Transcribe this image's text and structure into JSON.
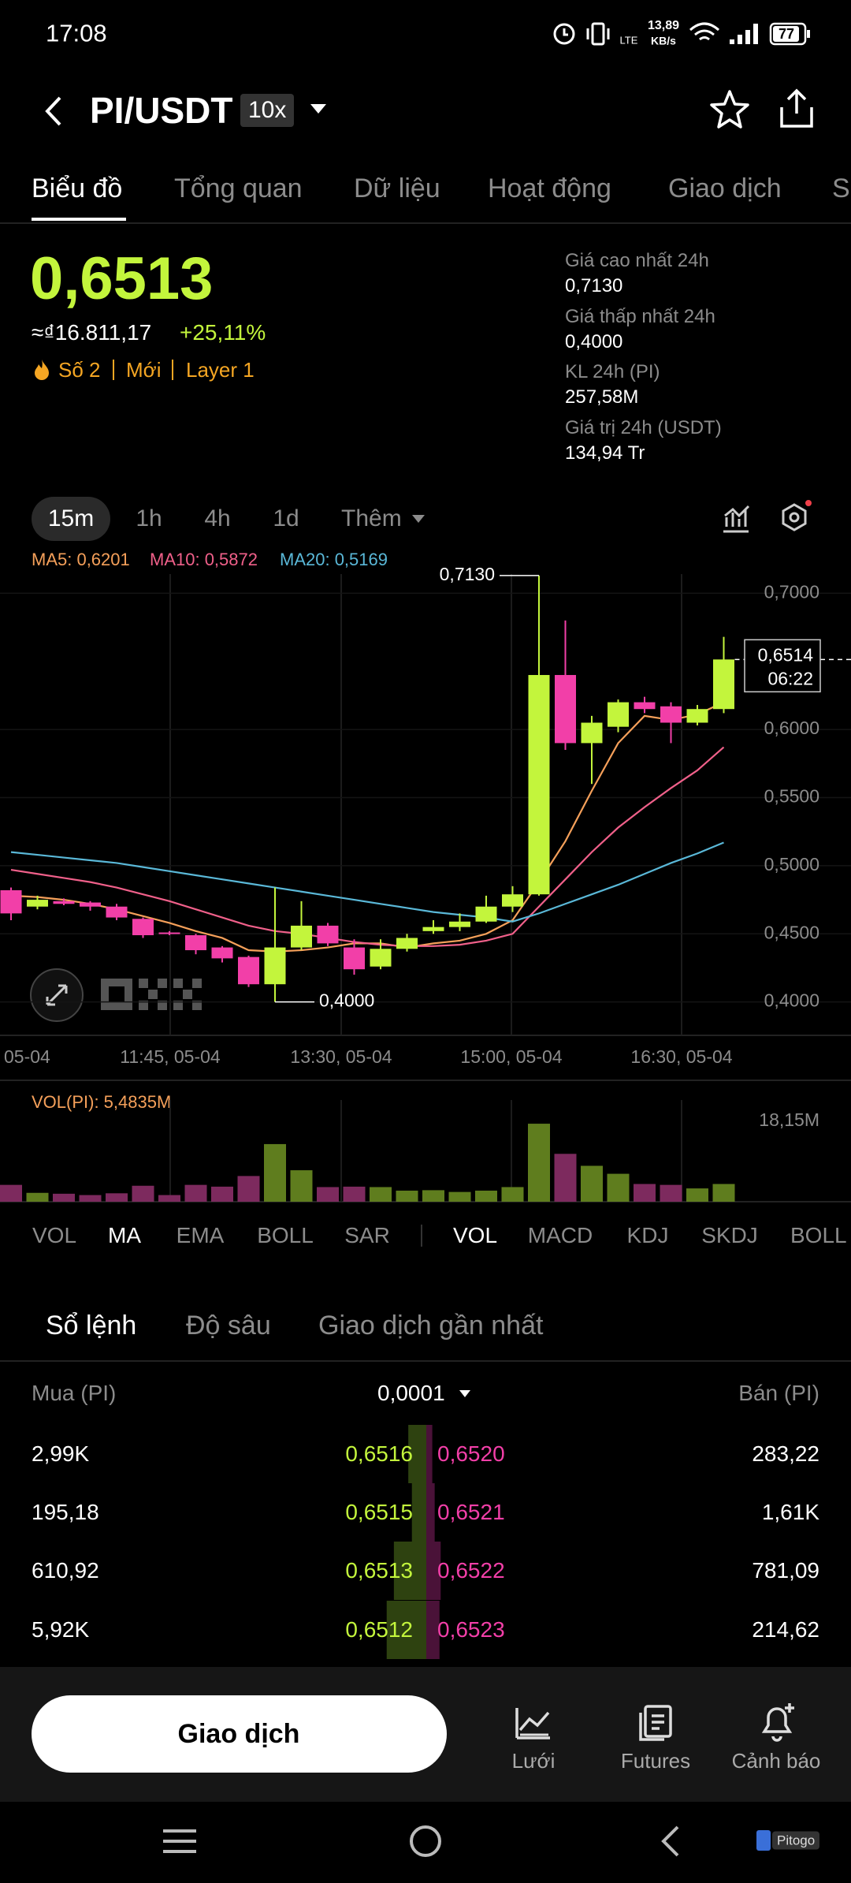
{
  "status_bar": {
    "time": "17:08",
    "lte": "LTE",
    "speed": "13,89",
    "speed_unit": "KB/s",
    "battery": "77"
  },
  "header": {
    "pair": "PI/USDT",
    "leverage": "10x"
  },
  "tabs": [
    "Biểu đồ",
    "Tổng quan",
    "Dữ liệu",
    "Hoạt động",
    "Giao dịch",
    "S"
  ],
  "ticker": {
    "price": "0,6513",
    "fiat": "≈₫16.811,17",
    "change": "+25,11%",
    "tags": [
      "Số 2",
      "Mới",
      "Layer 1"
    ]
  },
  "stats": [
    {
      "label": "Giá cao nhất 24h",
      "value": "0,7130"
    },
    {
      "label": "Giá thấp nhất 24h",
      "value": "0,4000"
    },
    {
      "label": "KL 24h (PI)",
      "value": "257,58M"
    },
    {
      "label": "Giá trị 24h (USDT)",
      "value": "134,94 Tr"
    }
  ],
  "timeframes": [
    "15m",
    "1h",
    "4h",
    "1d",
    "Thêm"
  ],
  "chart_data": {
    "type": "candlestick",
    "ma_legend": [
      {
        "label": "MA5: 0,6201",
        "color": "#f5a05a"
      },
      {
        "label": "MA10: 0,5872",
        "color": "#f0608a"
      },
      {
        "label": "MA20: 0,5169",
        "color": "#5ab8d8"
      }
    ],
    "up_color": "#c3f53c",
    "down_color": "#f23fa8",
    "open": [
      0.482,
      0.47,
      0.474,
      0.473,
      0.47,
      0.461,
      0.451,
      0.449,
      0.44,
      0.433,
      0.413,
      0.44,
      0.456,
      0.44,
      0.426,
      0.439,
      0.452,
      0.455,
      0.459,
      0.47,
      0.479,
      0.64,
      0.59,
      0.602,
      0.62,
      0.617,
      0.605,
      0.615
    ],
    "high": [
      0.484,
      0.478,
      0.476,
      0.474,
      0.472,
      0.462,
      0.452,
      0.45,
      0.441,
      0.434,
      0.484,
      0.474,
      0.458,
      0.446,
      0.446,
      0.45,
      0.46,
      0.465,
      0.478,
      0.485,
      0.713,
      0.68,
      0.61,
      0.622,
      0.624,
      0.62,
      0.618,
      0.668
    ],
    "low": [
      0.46,
      0.468,
      0.471,
      0.467,
      0.46,
      0.447,
      0.449,
      0.435,
      0.429,
      0.411,
      0.4,
      0.438,
      0.441,
      0.42,
      0.424,
      0.437,
      0.45,
      0.452,
      0.458,
      0.466,
      0.478,
      0.585,
      0.56,
      0.598,
      0.612,
      0.59,
      0.603,
      0.612
    ],
    "close": [
      0.465,
      0.475,
      0.472,
      0.47,
      0.462,
      0.449,
      0.45,
      0.438,
      0.432,
      0.413,
      0.44,
      0.456,
      0.443,
      0.424,
      0.439,
      0.447,
      0.455,
      0.459,
      0.47,
      0.479,
      0.64,
      0.59,
      0.605,
      0.62,
      0.615,
      0.605,
      0.615,
      0.6514
    ],
    "ma": [
      {
        "name": "MA5",
        "color": "#f5a05a",
        "values": [
          0.478,
          0.477,
          0.475,
          0.472,
          0.468,
          0.463,
          0.458,
          0.452,
          0.447,
          0.438,
          0.437,
          0.438,
          0.44,
          0.443,
          0.443,
          0.44,
          0.443,
          0.445,
          0.45,
          0.46,
          0.488,
          0.518,
          0.555,
          0.59,
          0.61,
          0.607,
          0.611,
          0.62
        ]
      },
      {
        "name": "MA10",
        "color": "#f0608a",
        "values": [
          0.497,
          0.494,
          0.491,
          0.488,
          0.484,
          0.479,
          0.474,
          0.468,
          0.462,
          0.456,
          0.452,
          0.45,
          0.447,
          0.444,
          0.442,
          0.441,
          0.441,
          0.442,
          0.445,
          0.45,
          0.47,
          0.49,
          0.51,
          0.528,
          0.543,
          0.557,
          0.57,
          0.587
        ]
      },
      {
        "name": "MA20",
        "color": "#5ab8d8",
        "values": [
          0.51,
          0.508,
          0.506,
          0.504,
          0.502,
          0.499,
          0.496,
          0.493,
          0.49,
          0.487,
          0.484,
          0.481,
          0.478,
          0.475,
          0.472,
          0.469,
          0.466,
          0.464,
          0.462,
          0.459,
          0.465,
          0.472,
          0.479,
          0.486,
          0.494,
          0.502,
          0.509,
          0.517
        ]
      }
    ],
    "ylim": [
      0.3755,
      0.7141
    ],
    "yticks": [
      {
        "value": 0.7,
        "label": "0,7000"
      },
      {
        "value": 0.6,
        "label": "0,6000"
      },
      {
        "value": 0.55,
        "label": "0,5500"
      },
      {
        "value": 0.5,
        "label": "0,5000"
      },
      {
        "value": 0.45,
        "label": "0,4500"
      },
      {
        "value": 0.4,
        "label": "0,4000"
      }
    ],
    "grid": true,
    "x_labels": [
      "05-04",
      "11:45, 05-04",
      "13:30, 05-04",
      "15:00, 05-04",
      "16:30, 05-04"
    ],
    "max_label": {
      "value": 0.713,
      "label": "0,7130"
    },
    "min_label": {
      "value": 0.4,
      "label": "0,4000"
    },
    "current": {
      "value": 0.6514,
      "label": "0,6514"
    },
    "countdown": "06:22",
    "volume_title": "VOL(PI): 5,4835M",
    "volume": [
      3.8,
      2.0,
      1.8,
      1.5,
      1.9,
      3.6,
      1.5,
      3.8,
      3.4,
      5.8,
      13.0,
      7.1,
      3.3,
      3.4,
      3.3,
      2.5,
      2.6,
      2.2,
      2.5,
      3.3,
      17.6,
      10.8,
      8.1,
      6.3,
      4.0,
      3.8,
      3.0,
      4.0
    ],
    "volume_up_color": "#5f7d1e",
    "volume_down_color": "#7d2a5e",
    "volume_ylim": [
      0,
      22.95
    ],
    "volume_ticks": [
      {
        "value": 18.15,
        "label": "18,15M"
      }
    ]
  },
  "indicators_main": [
    "VOL",
    "MA",
    "EMA",
    "BOLL",
    "SAR"
  ],
  "indicators_sub": [
    "VOL",
    "MACD",
    "KDJ",
    "SKDJ",
    "BOLL"
  ],
  "order_tabs": [
    "Sổ lệnh",
    "Độ sâu",
    "Giao dịch gần nhất"
  ],
  "order_book": {
    "buy_header": "Mua (PI)",
    "step": "0,0001",
    "sell_header": "Bán (PI)",
    "rows": [
      {
        "buy": "2,99K",
        "bid": "0,6516",
        "ask": "0,6520",
        "sell": "283,22"
      },
      {
        "buy": "195,18",
        "bid": "0,6515",
        "ask": "0,6521",
        "sell": "1,61K"
      },
      {
        "buy": "610,92",
        "bid": "0,6513",
        "ask": "0,6522",
        "sell": "781,09"
      },
      {
        "buy": "5,92K",
        "bid": "0,6512",
        "ask": "0,6523",
        "sell": "214,62"
      }
    ],
    "depth_buy": [
      15,
      12,
      27,
      33
    ],
    "depth_sell": [
      5,
      7,
      12,
      11
    ]
  },
  "bottom_bar": {
    "trade": "Giao dịch",
    "items": [
      "Lưới",
      "Futures",
      "Cảnh báo"
    ]
  },
  "nav": {
    "logo": "Pitogo"
  }
}
